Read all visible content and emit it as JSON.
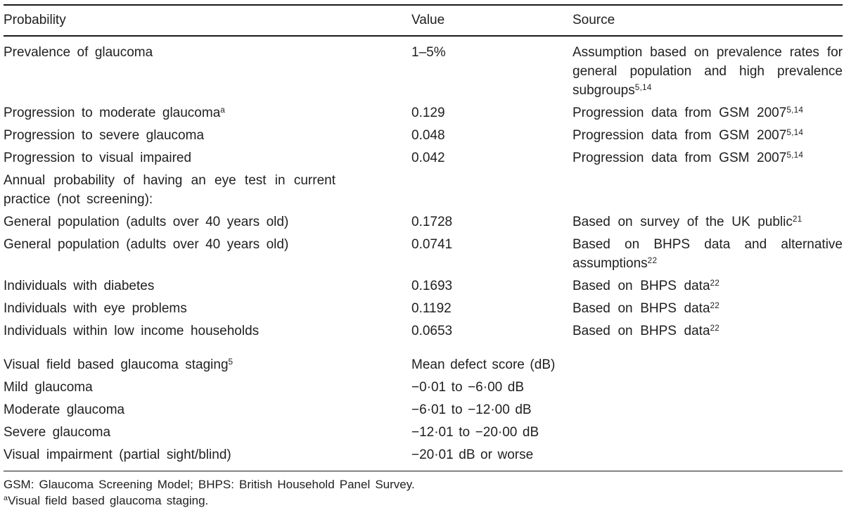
{
  "colors": {
    "text": "#1f1f1f",
    "rule": "#1a1a1a",
    "background": "#ffffff"
  },
  "table": {
    "columns": [
      {
        "label": "Probability"
      },
      {
        "label": "Value"
      },
      {
        "label": "Source"
      }
    ],
    "rows": [
      {
        "prob": "Prevalence of glaucoma",
        "prob_sup": "",
        "value": "1–5%",
        "value_sup": "",
        "source": "Assumption based on prevalence rates for general population and high prevalence subgroups",
        "source_sup": "5,14",
        "gap_before": false
      },
      {
        "prob": "Progression to moderate glaucoma",
        "prob_sup": "a",
        "value": "0.129",
        "value_sup": "",
        "source": "Progression data from GSM 2007",
        "source_sup": "5,14",
        "gap_before": false
      },
      {
        "prob": "Progression to severe glaucoma",
        "prob_sup": "",
        "value": "0.048",
        "value_sup": "",
        "source": "Progression data from GSM 2007",
        "source_sup": "5,14",
        "gap_before": false
      },
      {
        "prob": "Progression to visual impaired",
        "prob_sup": "",
        "value": "0.042",
        "value_sup": "",
        "source": "Progression data from GSM 2007",
        "source_sup": "5,14",
        "gap_before": false
      },
      {
        "prob": "Annual probability of having an eye test in current practice (not screening):",
        "prob_sup": "",
        "value": "",
        "value_sup": "",
        "source": "",
        "source_sup": "",
        "gap_before": false
      },
      {
        "prob": "General population (adults over 40 years old)",
        "prob_sup": "",
        "value": "0.1728",
        "value_sup": "",
        "source": "Based on survey of the UK public",
        "source_sup": "21",
        "gap_before": false
      },
      {
        "prob": "General population (adults over 40 years old)",
        "prob_sup": "",
        "value": "0.0741",
        "value_sup": "",
        "source": "Based on BHPS data and alternative assumptions",
        "source_sup": "22",
        "gap_before": false
      },
      {
        "prob": "Individuals with diabetes",
        "prob_sup": "",
        "value": "0.1693",
        "value_sup": "",
        "source": "Based on BHPS data",
        "source_sup": "22",
        "gap_before": false
      },
      {
        "prob": "Individuals with eye problems",
        "prob_sup": "",
        "value": "0.1192",
        "value_sup": "",
        "source": "Based on BHPS data",
        "source_sup": "22",
        "gap_before": false
      },
      {
        "prob": "Individuals within low income households",
        "prob_sup": "",
        "value": "0.0653",
        "value_sup": "",
        "source": "Based on BHPS data",
        "source_sup": "22",
        "gap_before": false
      },
      {
        "prob": "Visual field based glaucoma staging",
        "prob_sup": "5",
        "value": "Mean defect score (dB)",
        "value_sup": "",
        "source": "",
        "source_sup": "",
        "gap_before": true
      },
      {
        "prob": "Mild glaucoma",
        "prob_sup": "",
        "value": "−0·01 to −6·00 dB",
        "value_sup": "",
        "source": "",
        "source_sup": "",
        "gap_before": false
      },
      {
        "prob": "Moderate glaucoma",
        "prob_sup": "",
        "value": "−6·01 to −12·00 dB",
        "value_sup": "",
        "source": "",
        "source_sup": "",
        "gap_before": false
      },
      {
        "prob": "Severe glaucoma",
        "prob_sup": "",
        "value": "−12·01 to −20·00 dB",
        "value_sup": "",
        "source": "",
        "source_sup": "",
        "gap_before": false
      },
      {
        "prob": "Visual impairment (partial sight/blind)",
        "prob_sup": "",
        "value": "−20·01 dB or worse",
        "value_sup": "",
        "source": "",
        "source_sup": "",
        "gap_before": false
      }
    ],
    "footnotes": [
      {
        "sup": "",
        "text": "GSM: Glaucoma Screening Model; BHPS: British Household Panel Survey."
      },
      {
        "sup": "a",
        "text": "Visual field based glaucoma staging."
      }
    ]
  }
}
